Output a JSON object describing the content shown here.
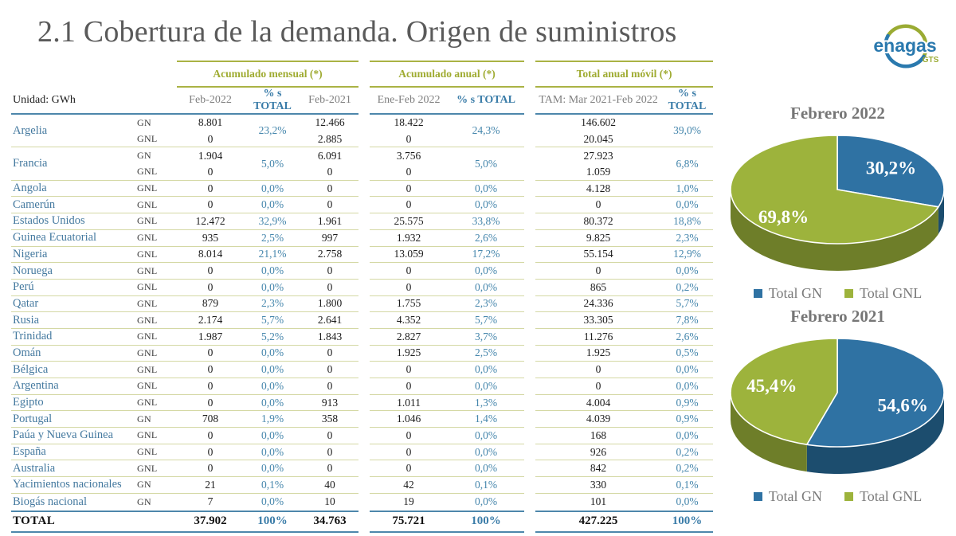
{
  "title": "2.1 Cobertura de la demanda. Origen de suministros",
  "logo": {
    "text": "enagas",
    "sub": "GTS"
  },
  "table": {
    "unit_label": "Unidad: GWh",
    "groups": [
      "Acumulado mensual (*)",
      "Acumulado anual (*)",
      "Total anual móvil (*)"
    ],
    "columns": [
      "Feb-2022",
      "% s TOTAL",
      "Feb-2021",
      "Ene-Feb 2022",
      "% s TOTAL",
      "TAM: Mar 2021-Feb 2022",
      "% s TOTAL"
    ],
    "rows": [
      {
        "country": "Argelia",
        "sub": [
          {
            "type": "GN",
            "feb2022": "8.801",
            "feb2021": "12.466",
            "enefeb": "18.422",
            "tam": "146.602"
          },
          {
            "type": "GNL",
            "feb2022": "0",
            "feb2021": "2.885",
            "enefeb": "0",
            "tam": "20.045"
          }
        ],
        "pct_m": "23,2%",
        "pct_a": "24,3%",
        "pct_t": "39,0%"
      },
      {
        "country": "Francia",
        "sub": [
          {
            "type": "GN",
            "feb2022": "1.904",
            "feb2021": "6.091",
            "enefeb": "3.756",
            "tam": "27.923"
          },
          {
            "type": "GNL",
            "feb2022": "0",
            "feb2021": "0",
            "enefeb": "0",
            "tam": "1.059"
          }
        ],
        "pct_m": "5,0%",
        "pct_a": "5,0%",
        "pct_t": "6,8%"
      },
      {
        "country": "Angola",
        "sub": [
          {
            "type": "GNL",
            "feb2022": "0",
            "feb2021": "0",
            "enefeb": "0",
            "tam": "4.128"
          }
        ],
        "pct_m": "0,0%",
        "pct_a": "0,0%",
        "pct_t": "1,0%"
      },
      {
        "country": "Camerún",
        "sub": [
          {
            "type": "GNL",
            "feb2022": "0",
            "feb2021": "0",
            "enefeb": "0",
            "tam": "0"
          }
        ],
        "pct_m": "0,0%",
        "pct_a": "0,0%",
        "pct_t": "0,0%"
      },
      {
        "country": "Estados Unidos",
        "sub": [
          {
            "type": "GNL",
            "feb2022": "12.472",
            "feb2021": "1.961",
            "enefeb": "25.575",
            "tam": "80.372"
          }
        ],
        "pct_m": "32,9%",
        "pct_a": "33,8%",
        "pct_t": "18,8%"
      },
      {
        "country": "Guinea Ecuatorial",
        "sub": [
          {
            "type": "GNL",
            "feb2022": "935",
            "feb2021": "997",
            "enefeb": "1.932",
            "tam": "9.825"
          }
        ],
        "pct_m": "2,5%",
        "pct_a": "2,6%",
        "pct_t": "2,3%"
      },
      {
        "country": "Nigeria",
        "sub": [
          {
            "type": "GNL",
            "feb2022": "8.014",
            "feb2021": "2.758",
            "enefeb": "13.059",
            "tam": "55.154"
          }
        ],
        "pct_m": "21,1%",
        "pct_a": "17,2%",
        "pct_t": "12,9%"
      },
      {
        "country": "Noruega",
        "sub": [
          {
            "type": "GNL",
            "feb2022": "0",
            "feb2021": "0",
            "enefeb": "0",
            "tam": "0"
          }
        ],
        "pct_m": "0,0%",
        "pct_a": "0,0%",
        "pct_t": "0,0%"
      },
      {
        "country": "Perú",
        "sub": [
          {
            "type": "GNL",
            "feb2022": "0",
            "feb2021": "0",
            "enefeb": "0",
            "tam": "865"
          }
        ],
        "pct_m": "0,0%",
        "pct_a": "0,0%",
        "pct_t": "0,2%"
      },
      {
        "country": "Qatar",
        "sub": [
          {
            "type": "GNL",
            "feb2022": "879",
            "feb2021": "1.800",
            "enefeb": "1.755",
            "tam": "24.336"
          }
        ],
        "pct_m": "2,3%",
        "pct_a": "2,3%",
        "pct_t": "5,7%"
      },
      {
        "country": "Rusia",
        "sub": [
          {
            "type": "GNL",
            "feb2022": "2.174",
            "feb2021": "2.641",
            "enefeb": "4.352",
            "tam": "33.305"
          }
        ],
        "pct_m": "5,7%",
        "pct_a": "5,7%",
        "pct_t": "7,8%"
      },
      {
        "country": "Trinidad",
        "sub": [
          {
            "type": "GNL",
            "feb2022": "1.987",
            "feb2021": "1.843",
            "enefeb": "2.827",
            "tam": "11.276"
          }
        ],
        "pct_m": "5,2%",
        "pct_a": "3,7%",
        "pct_t": "2,6%"
      },
      {
        "country": "Omán",
        "sub": [
          {
            "type": "GNL",
            "feb2022": "0",
            "feb2021": "0",
            "enefeb": "1.925",
            "tam": "1.925"
          }
        ],
        "pct_m": "0,0%",
        "pct_a": "2,5%",
        "pct_t": "0,5%"
      },
      {
        "country": "Bélgica",
        "sub": [
          {
            "type": "GNL",
            "feb2022": "0",
            "feb2021": "0",
            "enefeb": "0",
            "tam": "0"
          }
        ],
        "pct_m": "0,0%",
        "pct_a": "0,0%",
        "pct_t": "0,0%"
      },
      {
        "country": "Argentina",
        "sub": [
          {
            "type": "GNL",
            "feb2022": "0",
            "feb2021": "0",
            "enefeb": "0",
            "tam": "0"
          }
        ],
        "pct_m": "0,0%",
        "pct_a": "0,0%",
        "pct_t": "0,0%"
      },
      {
        "country": "Egipto",
        "sub": [
          {
            "type": "GNL",
            "feb2022": "0",
            "feb2021": "913",
            "enefeb": "1.011",
            "tam": "4.004"
          }
        ],
        "pct_m": "0,0%",
        "pct_a": "1,3%",
        "pct_t": "0,9%"
      },
      {
        "country": "Portugal",
        "sub": [
          {
            "type": "GN",
            "feb2022": "708",
            "feb2021": "358",
            "enefeb": "1.046",
            "tam": "4.039"
          }
        ],
        "pct_m": "1,9%",
        "pct_a": "1,4%",
        "pct_t": "0,9%"
      },
      {
        "country": "Paúa y Nueva Guinea",
        "sub": [
          {
            "type": "GNL",
            "feb2022": "0",
            "feb2021": "0",
            "enefeb": "0",
            "tam": "168"
          }
        ],
        "pct_m": "0,0%",
        "pct_a": "0,0%",
        "pct_t": "0,0%"
      },
      {
        "country": "España",
        "sub": [
          {
            "type": "GNL",
            "feb2022": "0",
            "feb2021": "0",
            "enefeb": "0",
            "tam": "926"
          }
        ],
        "pct_m": "0,0%",
        "pct_a": "0,0%",
        "pct_t": "0,2%"
      },
      {
        "country": "Australia",
        "sub": [
          {
            "type": "GNL",
            "feb2022": "0",
            "feb2021": "0",
            "enefeb": "0",
            "tam": "842"
          }
        ],
        "pct_m": "0,0%",
        "pct_a": "0,0%",
        "pct_t": "0,2%"
      },
      {
        "country": "Yacimientos nacionales",
        "sub": [
          {
            "type": "GN",
            "feb2022": "21",
            "feb2021": "40",
            "enefeb": "42",
            "tam": "330"
          }
        ],
        "pct_m": "0,1%",
        "pct_a": "0,1%",
        "pct_t": "0,1%"
      },
      {
        "country": "Biogás nacional",
        "sub": [
          {
            "type": "GN",
            "feb2022": "7",
            "feb2021": "10",
            "enefeb": "19",
            "tam": "101"
          }
        ],
        "pct_m": "0,0%",
        "pct_a": "0,0%",
        "pct_t": "0,0%"
      }
    ],
    "total": {
      "label": "TOTAL",
      "feb2022": "37.902",
      "pct_m": "100%",
      "feb2021": "34.763",
      "enefeb": "75.721",
      "pct_a": "100%",
      "tam": "427.225",
      "pct_t": "100%"
    }
  },
  "chart_data": [
    {
      "type": "pie",
      "title": "Febrero 2022",
      "labels": [
        "Total GN",
        "Total GNL"
      ],
      "values": [
        30.2,
        69.8
      ],
      "value_labels": [
        "30,2%",
        "69,8%"
      ],
      "colors": [
        "#2f72a3",
        "#9db33c"
      ],
      "side_colors": [
        "#1c4d6e",
        "#6e7e29"
      ],
      "legend_position": "bottom",
      "effect_3d": true
    },
    {
      "type": "pie",
      "title": "Febrero 2021",
      "labels": [
        "Total GN",
        "Total GNL"
      ],
      "values": [
        54.6,
        45.4
      ],
      "value_labels": [
        "54,6%",
        "45,4%"
      ],
      "colors": [
        "#2f72a3",
        "#9db33c"
      ],
      "side_colors": [
        "#1c4d6e",
        "#6e7e29"
      ],
      "legend_position": "bottom",
      "effect_3d": true
    }
  ]
}
